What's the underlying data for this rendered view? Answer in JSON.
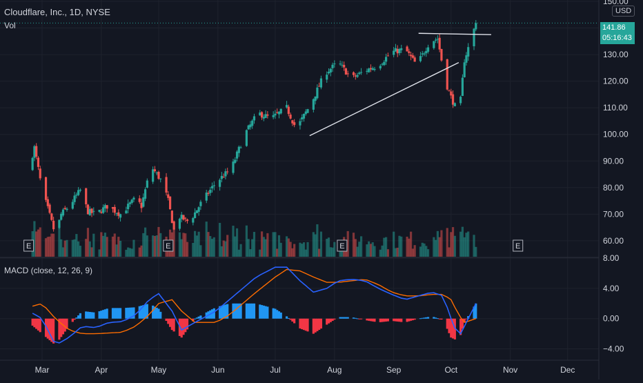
{
  "header": {
    "title": "Cloudflare, Inc., 1D, NYSE",
    "vol_label": "Vol",
    "currency": "USD",
    "last_price": "141.86",
    "countdown": "05:16:43"
  },
  "macd_legend": "MACD (close, 12, 26, 9)",
  "earnings_marker": "E",
  "colors": {
    "background": "#131722",
    "up": "#26a69a",
    "down": "#ef5350",
    "macd_line": "#2962ff",
    "signal_line": "#ff6d00",
    "hist_pos": "#2196f3",
    "hist_neg": "#f23645",
    "grid": "#1e222d",
    "text": "#d1d4dc"
  },
  "chart_data": [
    {
      "type": "candlestick",
      "title": "Cloudflare, Inc., 1D, NYSE",
      "y_axis": {
        "ticks": [
          "60.00",
          "70.00",
          "80.00",
          "90.00",
          "100.00",
          "110.00",
          "120.00",
          "130.00",
          "150.00"
        ],
        "range": [
          54,
          150
        ]
      },
      "x_axis": {
        "ticks": [
          "Mar",
          "Apr",
          "May",
          "Jun",
          "Jul",
          "Aug",
          "Sep",
          "Oct",
          "Nov",
          "Dec"
        ]
      },
      "anchors": [
        {
          "date": "Feb 22",
          "close": 87
        },
        {
          "date": "Feb 25",
          "close": 95
        },
        {
          "date": "Mar 1",
          "close": 79
        },
        {
          "date": "Mar 4",
          "close": 72
        },
        {
          "date": "Mar 8",
          "close": 62
        },
        {
          "date": "Mar 11",
          "close": 70
        },
        {
          "date": "Mar 15",
          "close": 73
        },
        {
          "date": "Mar 21",
          "close": 79
        },
        {
          "date": "Mar 25",
          "close": 71
        },
        {
          "date": "Mar 29",
          "close": 70
        },
        {
          "date": "Apr 4",
          "close": 73
        },
        {
          "date": "Apr 11",
          "close": 70
        },
        {
          "date": "Apr 19",
          "close": 76
        },
        {
          "date": "Apr 22",
          "close": 73
        },
        {
          "date": "Apr 27",
          "close": 88
        },
        {
          "date": "May 3",
          "close": 82
        },
        {
          "date": "May 6",
          "close": 75
        },
        {
          "date": "May 9",
          "close": 64
        },
        {
          "date": "May 12",
          "close": 69
        },
        {
          "date": "May 17",
          "close": 67
        },
        {
          "date": "May 23",
          "close": 74
        },
        {
          "date": "May 31",
          "close": 82
        },
        {
          "date": "Jun 8",
          "close": 87
        },
        {
          "date": "Jun 15",
          "close": 100
        },
        {
          "date": "Jun 22",
          "close": 108
        },
        {
          "date": "Jun 29",
          "close": 106
        },
        {
          "date": "Jul 7",
          "close": 110
        },
        {
          "date": "Jul 12",
          "close": 102
        },
        {
          "date": "Jul 20",
          "close": 112
        },
        {
          "date": "Jul 27",
          "close": 123
        },
        {
          "date": "Aug 3",
          "close": 127
        },
        {
          "date": "Aug 10",
          "close": 121
        },
        {
          "date": "Aug 17",
          "close": 124
        },
        {
          "date": "Aug 24",
          "close": 126
        },
        {
          "date": "Aug 31",
          "close": 131
        },
        {
          "date": "Sep 7",
          "close": 132
        },
        {
          "date": "Sep 13",
          "close": 126
        },
        {
          "date": "Sep 20",
          "close": 135
        },
        {
          "date": "Sep 24",
          "close": 136
        },
        {
          "date": "Sep 28",
          "close": 120
        },
        {
          "date": "Oct 1",
          "close": 114
        },
        {
          "date": "Oct 4",
          "close": 109
        },
        {
          "date": "Oct 6",
          "close": 113
        },
        {
          "date": "Oct 8",
          "close": 128
        },
        {
          "date": "Oct 12",
          "close": 137
        },
        {
          "date": "Oct 14",
          "close": 141.86
        }
      ],
      "trendlines": [
        {
          "from": {
            "date": "Jul 19",
            "price": 99.5
          },
          "to": {
            "date": "Oct 5",
            "price": 127
          }
        },
        {
          "from": {
            "date": "Sep 14",
            "price": 138
          },
          "to": {
            "date": "Oct 22",
            "price": 137.5
          }
        }
      ],
      "earnings_dates": [
        "Feb 22",
        "May 6",
        "Aug 5",
        "Nov 5"
      ]
    },
    {
      "type": "macd",
      "title": "MACD (close, 12, 26, 9)",
      "y_axis": {
        "ticks": [
          "8.00",
          "4.00",
          "0.00",
          "−4.00"
        ],
        "range": [
          -5.5,
          8
        ]
      },
      "macd_anchors": [
        {
          "date": "Feb 22",
          "value": 1
        },
        {
          "date": "Mar 1",
          "value": 0
        },
        {
          "date": "Mar 8",
          "value": -3.5
        },
        {
          "date": "Mar 15",
          "value": -2.5
        },
        {
          "date": "Mar 22",
          "value": -1
        },
        {
          "date": "Mar 29",
          "value": -1.2
        },
        {
          "date": "Apr 5",
          "value": -0.5
        },
        {
          "date": "Apr 12",
          "value": -0.4
        },
        {
          "date": "Apr 19",
          "value": 0.5
        },
        {
          "date": "Apr 26",
          "value": 2.5
        },
        {
          "date": "May 1",
          "value": 3.3
        },
        {
          "date": "May 8",
          "value": 1
        },
        {
          "date": "May 13",
          "value": -1.5
        },
        {
          "date": "May 20",
          "value": -0.5
        },
        {
          "date": "May 31",
          "value": 1
        },
        {
          "date": "Jun 7",
          "value": 2.5
        },
        {
          "date": "Jun 14",
          "value": 4
        },
        {
          "date": "Jun 21",
          "value": 5.5
        },
        {
          "date": "Jul 1",
          "value": 6.8
        },
        {
          "date": "Jul 7",
          "value": 6.8
        },
        {
          "date": "Jul 14",
          "value": 5
        },
        {
          "date": "Jul 21",
          "value": 3.5
        },
        {
          "date": "Jul 28",
          "value": 4
        },
        {
          "date": "Aug 3",
          "value": 5
        },
        {
          "date": "Aug 10",
          "value": 5.2
        },
        {
          "date": "Aug 17",
          "value": 5
        },
        {
          "date": "Aug 24",
          "value": 4
        },
        {
          "date": "Aug 31",
          "value": 3.2
        },
        {
          "date": "Sep 7",
          "value": 2.5
        },
        {
          "date": "Sep 14",
          "value": 3
        },
        {
          "date": "Sep 21",
          "value": 3.5
        },
        {
          "date": "Sep 27",
          "value": 3
        },
        {
          "date": "Oct 1",
          "value": 0
        },
        {
          "date": "Oct 5",
          "value": -2.5
        },
        {
          "date": "Oct 8",
          "value": -1
        },
        {
          "date": "Oct 14",
          "value": 2
        }
      ],
      "signal_anchors": [
        {
          "date": "Feb 22",
          "value": 1.5
        },
        {
          "date": "Mar 1",
          "value": 2
        },
        {
          "date": "Mar 8",
          "value": 0
        },
        {
          "date": "Mar 15",
          "value": -1.5
        },
        {
          "date": "Mar 22",
          "value": -2
        },
        {
          "date": "Mar 29",
          "value": -2
        },
        {
          "date": "Apr 12",
          "value": -1.8
        },
        {
          "date": "Apr 19",
          "value": -1
        },
        {
          "date": "Apr 26",
          "value": 0.5
        },
        {
          "date": "May 1",
          "value": 2
        },
        {
          "date": "May 8",
          "value": 2.5
        },
        {
          "date": "May 13",
          "value": 1
        },
        {
          "date": "May 20",
          "value": -0.5
        },
        {
          "date": "May 31",
          "value": -0.5
        },
        {
          "date": "Jun 7",
          "value": 0.5
        },
        {
          "date": "Jun 14",
          "value": 2
        },
        {
          "date": "Jun 21",
          "value": 3.5
        },
        {
          "date": "Jul 1",
          "value": 5.5
        },
        {
          "date": "Jul 7",
          "value": 6.5
        },
        {
          "date": "Jul 14",
          "value": 6.3
        },
        {
          "date": "Jul 21",
          "value": 5.5
        },
        {
          "date": "Jul 28",
          "value": 4.8
        },
        {
          "date": "Aug 3",
          "value": 4.8
        },
        {
          "date": "Aug 10",
          "value": 5
        },
        {
          "date": "Aug 17",
          "value": 5.2
        },
        {
          "date": "Aug 24",
          "value": 4.5
        },
        {
          "date": "Aug 31",
          "value": 3.5
        },
        {
          "date": "Sep 7",
          "value": 3
        },
        {
          "date": "Sep 14",
          "value": 3
        },
        {
          "date": "Sep 21",
          "value": 3.2
        },
        {
          "date": "Sep 27",
          "value": 3.2
        },
        {
          "date": "Oct 1",
          "value": 2.5
        },
        {
          "date": "Oct 5",
          "value": 0.5
        },
        {
          "date": "Oct 8",
          "value": -0.5
        },
        {
          "date": "Oct 14",
          "value": 0
        }
      ]
    }
  ]
}
